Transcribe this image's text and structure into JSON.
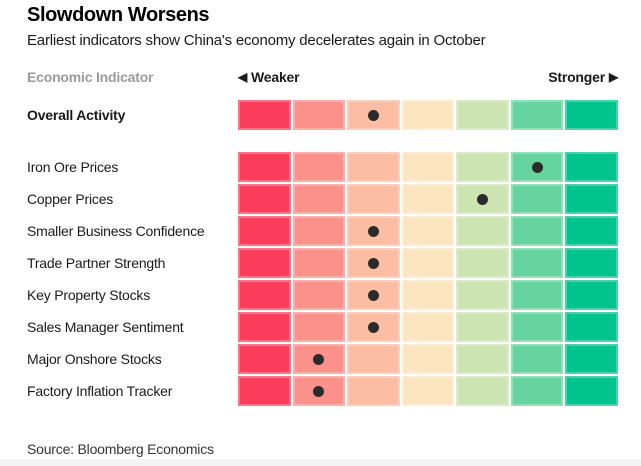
{
  "header": {
    "title": "Slowdown Worsens",
    "subtitle": "Earliest indicators show China's economy decelerates again in October"
  },
  "legend": {
    "column_label": "Economic Indicator",
    "weaker": {
      "arrow": "◀",
      "label": "Weaker"
    },
    "stronger": {
      "label": "Stronger",
      "arrow": "▶"
    }
  },
  "chart_data": {
    "type": "heatmap",
    "description": "Diverging 7-bin scale per row from Weaker (red, left) to Stronger (green, right); a black dot marks each indicator's current position",
    "n_bins": 7,
    "scale_colors": [
      "#fb3d5c",
      "#fc918c",
      "#fbbda4",
      "#fbe5c0",
      "#cce3b2",
      "#66d49e",
      "#00c48c"
    ],
    "dot_color": "#2b2b2b",
    "x_axis": {
      "left_label": "Weaker",
      "right_label": "Stronger"
    },
    "rows": [
      {
        "label": "Overall Activity",
        "value_bin": 3,
        "emphasis": true,
        "section": "overall"
      },
      {
        "label": "Iron Ore Prices",
        "value_bin": 6,
        "emphasis": false,
        "section": "components"
      },
      {
        "label": "Copper Prices",
        "value_bin": 5,
        "emphasis": false,
        "section": "components"
      },
      {
        "label": "Smaller Business Confidence",
        "value_bin": 3,
        "emphasis": false,
        "section": "components"
      },
      {
        "label": "Trade Partner Strength",
        "value_bin": 3,
        "emphasis": false,
        "section": "components"
      },
      {
        "label": "Key Property Stocks",
        "value_bin": 3,
        "emphasis": false,
        "section": "components"
      },
      {
        "label": "Sales Manager Sentiment",
        "value_bin": 3,
        "emphasis": false,
        "section": "components"
      },
      {
        "label": "Major Onshore Stocks",
        "value_bin": 2,
        "emphasis": false,
        "section": "components"
      },
      {
        "label": "Factory Inflation Tracker",
        "value_bin": 2,
        "emphasis": false,
        "section": "components"
      }
    ]
  },
  "footer": {
    "source": "Source: Bloomberg Economics"
  }
}
